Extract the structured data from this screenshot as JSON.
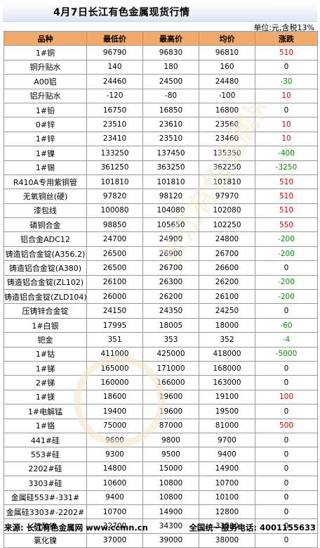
{
  "title": "4月7日长江有色金属现货行情",
  "unit": "单位:元,含税13%",
  "headers": [
    "品种",
    "最低价",
    "最高价",
    "均价",
    "涨跌"
  ],
  "rows": [
    {
      "name": "1#铜",
      "low": "96790",
      "high": "96830",
      "avg": "96810",
      "change": "510",
      "dir": "up"
    },
    {
      "name": "铜升贴水",
      "low": "140",
      "high": "180",
      "avg": "160",
      "change": "0",
      "dir": "flat"
    },
    {
      "name": "A00铝",
      "low": "24460",
      "high": "24500",
      "avg": "24480",
      "change": "-30",
      "dir": "down"
    },
    {
      "name": "铝升贴水",
      "low": "-120",
      "high": "-80",
      "avg": "-100",
      "change": "10",
      "dir": "up"
    },
    {
      "name": "1#铅",
      "low": "16750",
      "high": "16850",
      "avg": "16800",
      "change": "0",
      "dir": "flat"
    },
    {
      "name": "0#锌",
      "low": "23510",
      "high": "23610",
      "avg": "23560",
      "change": "10",
      "dir": "up"
    },
    {
      "name": "1#锌",
      "low": "23410",
      "high": "23510",
      "avg": "23460",
      "change": "10",
      "dir": "up"
    },
    {
      "name": "1#镍",
      "low": "133250",
      "high": "137450",
      "avg": "135350",
      "change": "-400",
      "dir": "down"
    },
    {
      "name": "1#锡",
      "low": "361250",
      "high": "363250",
      "avg": "362250",
      "change": "-3250",
      "dir": "down"
    },
    {
      "name": "R410A专用紫铜管",
      "low": "101810",
      "high": "101810",
      "avg": "101810",
      "change": "510",
      "dir": "up"
    },
    {
      "name": "无氧铜丝(硬)",
      "low": "97820",
      "high": "98120",
      "avg": "97970",
      "change": "510",
      "dir": "up"
    },
    {
      "name": "漆包线",
      "low": "100080",
      "high": "104080",
      "avg": "102080",
      "change": "510",
      "dir": "up"
    },
    {
      "name": "磷铜合金",
      "low": "98850",
      "high": "105650",
      "avg": "102250",
      "change": "550",
      "dir": "up"
    },
    {
      "name": "铝合金ADC12",
      "low": "24700",
      "high": "24900",
      "avg": "24800",
      "change": "-200",
      "dir": "down"
    },
    {
      "name": "铸造铝合金锭(A356.2)",
      "low": "26500",
      "high": "26900",
      "avg": "26700",
      "change": "-200",
      "dir": "down"
    },
    {
      "name": "铸造铝合金锭(A380)",
      "low": "26500",
      "high": "26700",
      "avg": "26600",
      "change": "0",
      "dir": "flat"
    },
    {
      "name": "铸造铝合金锭(ZL102)",
      "low": "26100",
      "high": "26300",
      "avg": "26200",
      "change": "-200",
      "dir": "down"
    },
    {
      "name": "铸造铝合金锭(ZLD104)",
      "low": "26000",
      "high": "26200",
      "avg": "26100",
      "change": "-200",
      "dir": "down"
    },
    {
      "name": "压铸锌合金锭",
      "low": "24150",
      "high": "24350",
      "avg": "24250",
      "change": "0",
      "dir": "flat"
    },
    {
      "name": "1#白银",
      "low": "17995",
      "high": "18005",
      "avg": "18000",
      "change": "-60",
      "dir": "down"
    },
    {
      "name": "钯金",
      "low": "351",
      "high": "353",
      "avg": "352",
      "change": "-4",
      "dir": "down"
    },
    {
      "name": "1#钴",
      "low": "411000",
      "high": "425000",
      "avg": "418000",
      "change": "-5000",
      "dir": "down"
    },
    {
      "name": "1#锑",
      "low": "165000",
      "high": "171000",
      "avg": "168000",
      "change": "0",
      "dir": "flat"
    },
    {
      "name": "2#锑",
      "low": "160000",
      "high": "166000",
      "avg": "163000",
      "change": "0",
      "dir": "flat"
    },
    {
      "name": "1#镁",
      "low": "18600",
      "high": "19600",
      "avg": "19100",
      "change": "100",
      "dir": "up"
    },
    {
      "name": "1#电解锰",
      "low": "19400",
      "high": "19600",
      "avg": "19500",
      "change": "0",
      "dir": "flat"
    },
    {
      "name": "1#铬",
      "low": "75000",
      "high": "87000",
      "avg": "81000",
      "change": "500",
      "dir": "up"
    },
    {
      "name": "441#硅",
      "low": "9600",
      "high": "9800",
      "avg": "9700",
      "change": "0",
      "dir": "flat"
    },
    {
      "name": "553#硅",
      "low": "9300",
      "high": "9500",
      "avg": "9400",
      "change": "0",
      "dir": "flat"
    },
    {
      "name": "2202#硅",
      "low": "14800",
      "high": "15000",
      "avg": "14900",
      "change": "0",
      "dir": "flat"
    },
    {
      "name": "3303#硅",
      "low": "10600",
      "high": "10800",
      "avg": "10700",
      "change": "0",
      "dir": "flat"
    },
    {
      "name": "金属硅553#-331#",
      "low": "9400",
      "high": "10800",
      "avg": "10100",
      "change": "0",
      "dir": "flat"
    },
    {
      "name": "金属硅3303#-2202#",
      "low": "10700",
      "high": "14900",
      "avg": "12800",
      "change": "0",
      "dir": "flat"
    },
    {
      "name": "硫酸镍",
      "low": "32700",
      "high": "34300",
      "avg": "33500",
      "change": "0",
      "dir": "flat"
    },
    {
      "name": "氯化镍",
      "low": "37000",
      "high": "39000",
      "avg": "38000",
      "change": "0",
      "dir": "flat"
    }
  ],
  "footer": {
    "source": "来源: 长江有色金属网 www.ccmn.cn",
    "hotline": "全国统一服务电话: 4001155633"
  },
  "colors": {
    "header_bg": "#f2a96a",
    "up": "#e00000",
    "down": "#009900"
  }
}
